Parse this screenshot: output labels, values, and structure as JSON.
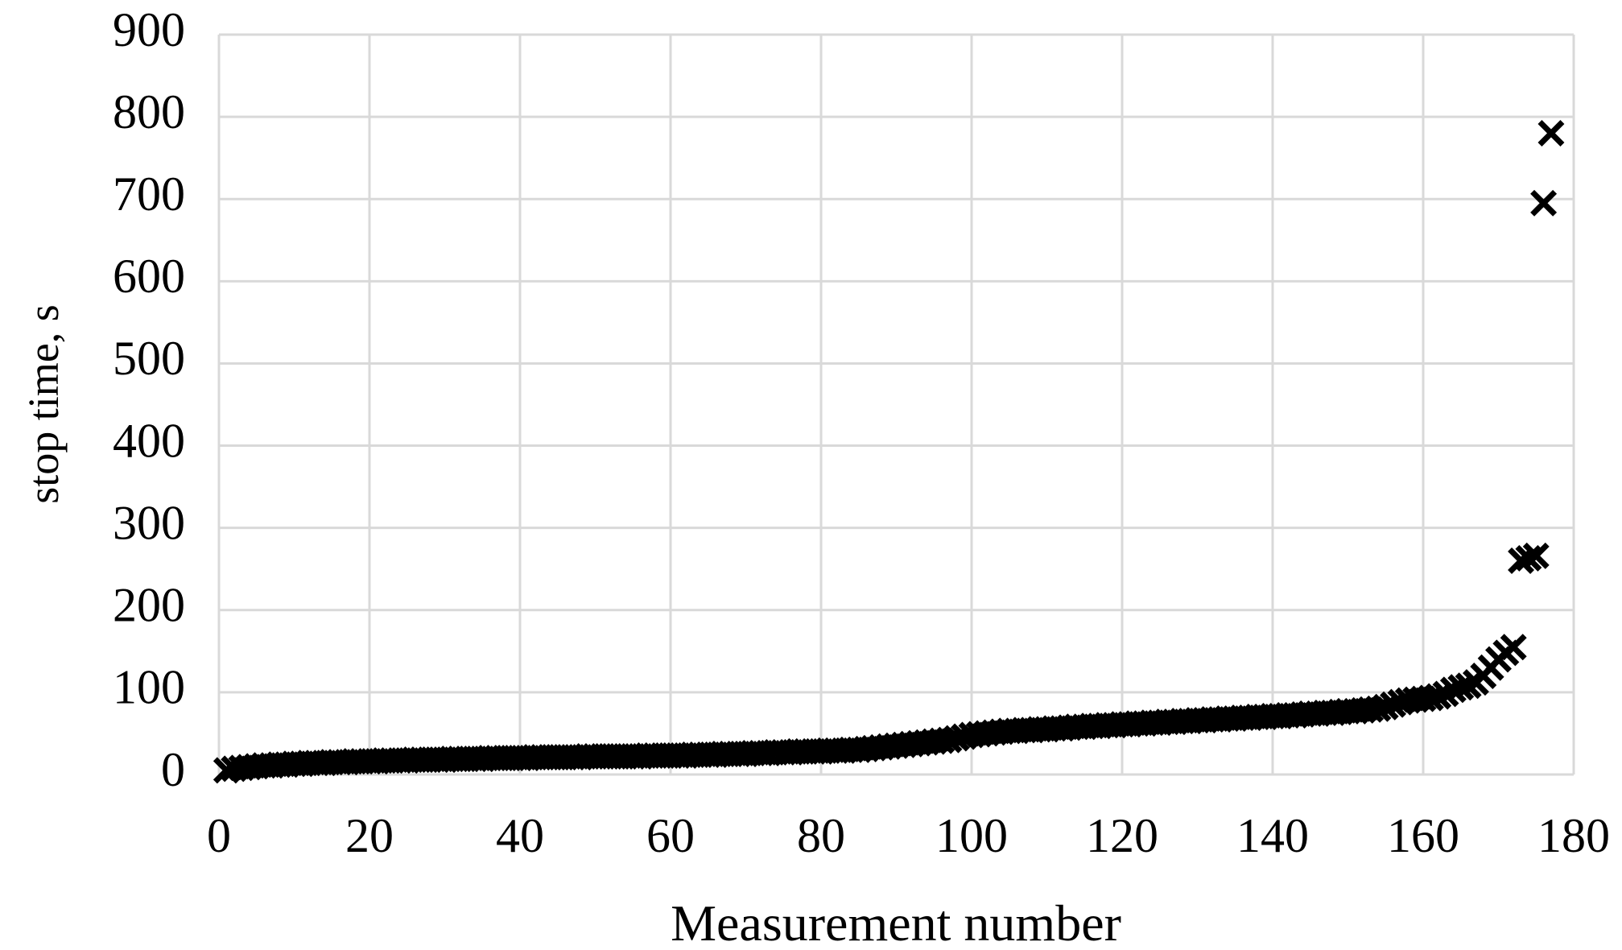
{
  "chart_data": {
    "type": "scatter",
    "x_label": "Measurement number",
    "y_label": "stop time, s",
    "x": [
      1,
      2,
      3,
      4,
      5,
      6,
      7,
      8,
      9,
      10,
      11,
      12,
      13,
      14,
      15,
      16,
      17,
      18,
      19,
      20,
      21,
      22,
      23,
      24,
      25,
      26,
      27,
      28,
      29,
      30,
      31,
      32,
      33,
      34,
      35,
      36,
      37,
      38,
      39,
      40,
      41,
      42,
      43,
      44,
      45,
      46,
      47,
      48,
      49,
      50,
      51,
      52,
      53,
      54,
      55,
      56,
      57,
      58,
      59,
      60,
      61,
      62,
      63,
      64,
      65,
      66,
      67,
      68,
      69,
      70,
      71,
      72,
      73,
      74,
      75,
      76,
      77,
      78,
      79,
      80,
      81,
      82,
      83,
      84,
      85,
      86,
      87,
      88,
      89,
      90,
      91,
      92,
      93,
      94,
      95,
      96,
      97,
      98,
      99,
      100,
      101,
      102,
      103,
      104,
      105,
      106,
      107,
      108,
      109,
      110,
      111,
      112,
      113,
      114,
      115,
      116,
      117,
      118,
      119,
      120,
      121,
      122,
      123,
      124,
      125,
      126,
      127,
      128,
      129,
      130,
      131,
      132,
      133,
      134,
      135,
      136,
      137,
      138,
      139,
      140,
      141,
      142,
      143,
      144,
      145,
      146,
      147,
      148,
      149,
      150,
      151,
      152,
      153,
      154,
      155,
      156,
      157,
      158,
      159,
      160,
      161,
      162,
      163,
      164,
      165,
      166,
      167,
      168,
      169,
      170,
      171,
      172,
      173,
      174,
      175,
      176,
      177
    ],
    "values": [
      5,
      7,
      8,
      9,
      10,
      11,
      11,
      12,
      12,
      13,
      13,
      14,
      14,
      14,
      15,
      15,
      15,
      16,
      16,
      16,
      16,
      17,
      17,
      17,
      17,
      18,
      18,
      18,
      18,
      18,
      19,
      19,
      19,
      19,
      19,
      20,
      20,
      20,
      20,
      20,
      20,
      21,
      21,
      21,
      21,
      21,
      21,
      21,
      22,
      22,
      22,
      22,
      22,
      22,
      22,
      22,
      23,
      23,
      23,
      23,
      23,
      23,
      24,
      24,
      24,
      24,
      25,
      25,
      25,
      25,
      26,
      26,
      26,
      27,
      27,
      27,
      28,
      28,
      28,
      28,
      29,
      29,
      29,
      30,
      30,
      31,
      32,
      33,
      34,
      35,
      36,
      37,
      38,
      39,
      40,
      41,
      42,
      44,
      46,
      48,
      49,
      50,
      51,
      52,
      53,
      53,
      54,
      54,
      55,
      55,
      56,
      56,
      57,
      58,
      58,
      59,
      59,
      60,
      60,
      61,
      61,
      62,
      62,
      63,
      63,
      64,
      64,
      65,
      65,
      66,
      66,
      67,
      67,
      68,
      68,
      69,
      69,
      70,
      70,
      71,
      71,
      72,
      72,
      73,
      74,
      74,
      75,
      75,
      76,
      77,
      77,
      78,
      79,
      80,
      82,
      85,
      88,
      90,
      91,
      92,
      93,
      95,
      98,
      103,
      106,
      108,
      112,
      120,
      130,
      140,
      148,
      155,
      260,
      263,
      266,
      695,
      780
    ],
    "color": "#000000",
    "xlim": [
      0,
      180
    ],
    "xticks": [
      0,
      20,
      40,
      60,
      80,
      100,
      120,
      140,
      160,
      180
    ],
    "ylim": [
      0,
      900
    ],
    "yticks": [
      0,
      100,
      200,
      300,
      400,
      500,
      600,
      700,
      800,
      900
    ],
    "grid": true
  }
}
